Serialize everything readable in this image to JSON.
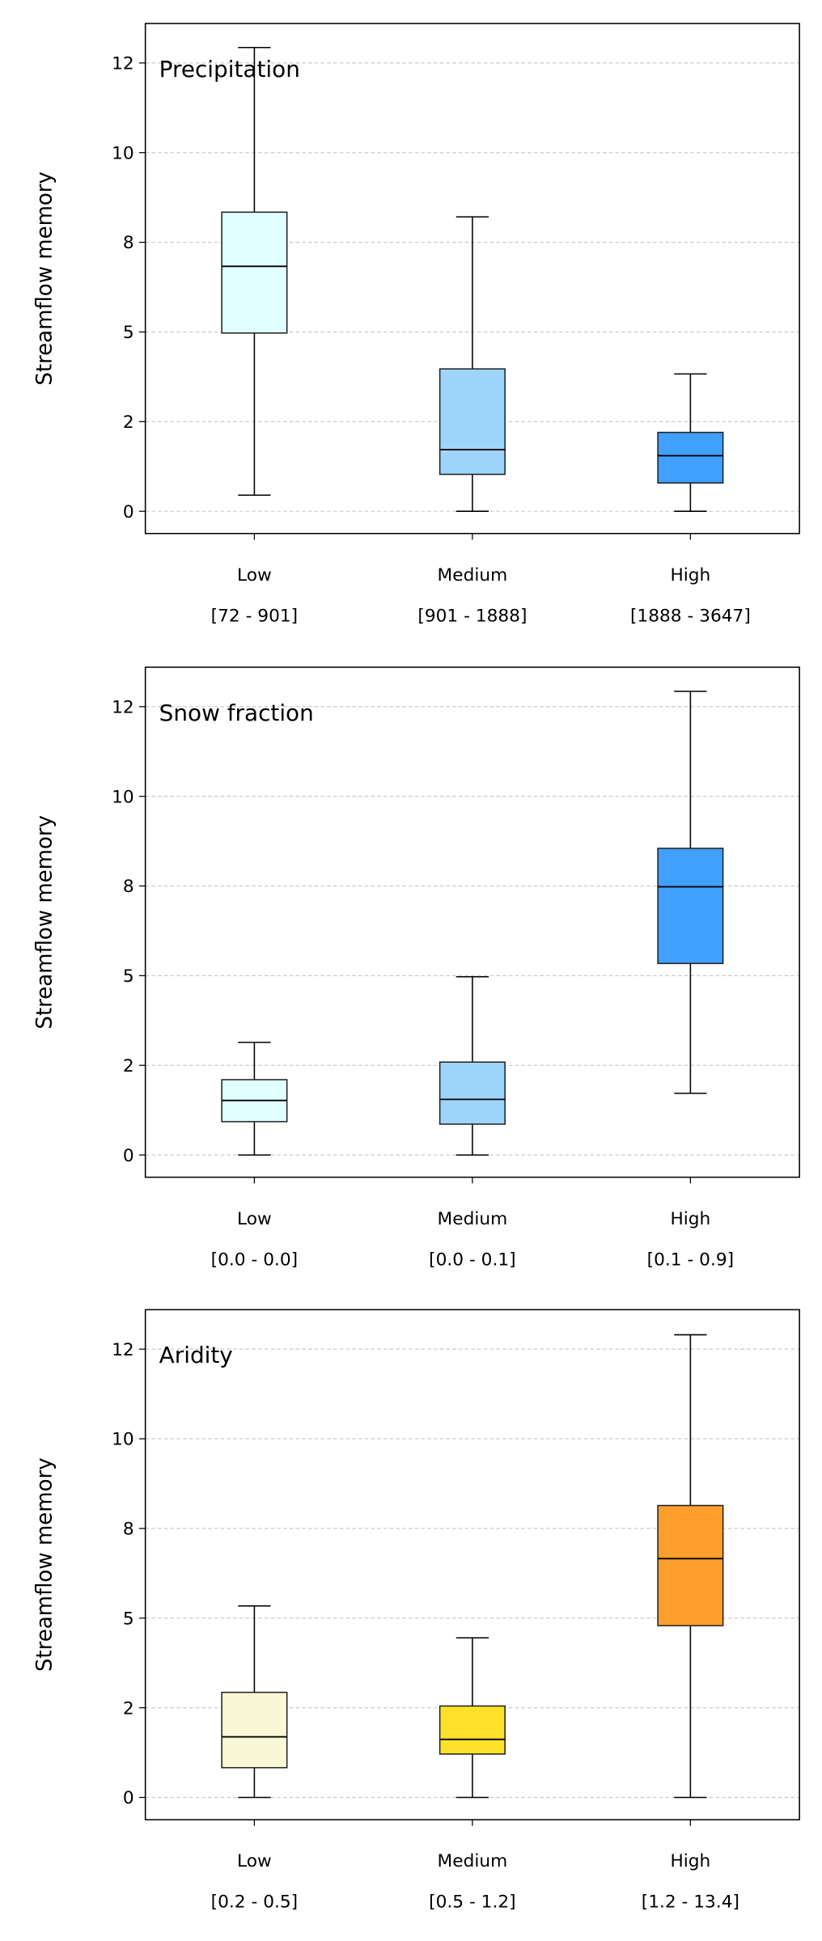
{
  "chart_data": [
    {
      "type": "box",
      "title": "Precipitation",
      "ylabel": "Streamflow memory",
      "categories": [
        "Low",
        "Medium",
        "High"
      ],
      "ranges": [
        "[72 - 901]",
        "[901 - 1888]",
        "[1888 - 3647]"
      ],
      "colors": [
        "#e0ffff",
        "#9dd5fa",
        "#3fa0ff"
      ],
      "boxes": [
        {
          "whislo": 0.45,
          "q1": 4.97,
          "med": 6.83,
          "q3": 8.34,
          "whishi": 12.93
        },
        {
          "whislo": 0,
          "q1": 1.03,
          "med": 1.72,
          "q3": 3.97,
          "whishi": 8.21
        },
        {
          "whislo": 0,
          "q1": 0.79,
          "med": 1.55,
          "q3": 2.2,
          "whishi": 3.83
        }
      ],
      "ylim": [
        -0.62,
        13.6
      ],
      "yticks": [
        0,
        {
          "value": 2.5,
          "label": "2"
        },
        5,
        {
          "value": 7.5,
          "label": "8"
        },
        10,
        {
          "value": 12.5,
          "label": "12"
        }
      ],
      "grid": true
    },
    {
      "type": "box",
      "title": "Snow fraction",
      "ylabel": "Streamflow memory",
      "categories": [
        "Low",
        "Medium",
        "High"
      ],
      "ranges": [
        "[0.0 - 0.0]",
        "[0.0 - 0.1]",
        "[0.1 - 0.9]"
      ],
      "colors": [
        "#e0ffff",
        "#9dd5fa",
        "#3fa0ff"
      ],
      "boxes": [
        {
          "whislo": 0,
          "q1": 0.93,
          "med": 1.52,
          "q3": 2.1,
          "whishi": 3.14
        },
        {
          "whislo": 0,
          "q1": 0.86,
          "med": 1.55,
          "q3": 2.59,
          "whishi": 4.97
        },
        {
          "whislo": 1.72,
          "q1": 5.34,
          "med": 7.48,
          "q3": 8.55,
          "whishi": 12.93
        }
      ],
      "ylim": [
        -0.62,
        13.6
      ],
      "yticks": [
        0,
        {
          "value": 2.5,
          "label": "2"
        },
        5,
        {
          "value": 7.5,
          "label": "8"
        },
        10,
        {
          "value": 12.5,
          "label": "12"
        }
      ],
      "grid": true
    },
    {
      "type": "box",
      "title": "Aridity",
      "ylabel": "Streamflow memory",
      "categories": [
        "Low",
        "Medium",
        "High"
      ],
      "ranges": [
        "[0.2 - 0.5]",
        "[0.5 - 1.2]",
        "[1.2 - 13.4]"
      ],
      "colors": [
        "#f8f8d6",
        "#fde02a",
        "#fd9f2a"
      ],
      "boxes": [
        {
          "whislo": 0,
          "q1": 0.83,
          "med": 1.69,
          "q3": 2.93,
          "whishi": 5.34
        },
        {
          "whislo": 0,
          "q1": 1.21,
          "med": 1.62,
          "q3": 2.55,
          "whishi": 4.45
        },
        {
          "whislo": 0,
          "q1": 4.79,
          "med": 6.66,
          "q3": 8.14,
          "whishi": 12.9
        }
      ],
      "ylim": [
        -0.62,
        13.6
      ],
      "yticks": [
        0,
        {
          "value": 2.5,
          "label": "2"
        },
        5,
        {
          "value": 7.5,
          "label": "8"
        },
        10,
        {
          "value": 12.5,
          "label": "12"
        }
      ],
      "grid": true
    }
  ]
}
